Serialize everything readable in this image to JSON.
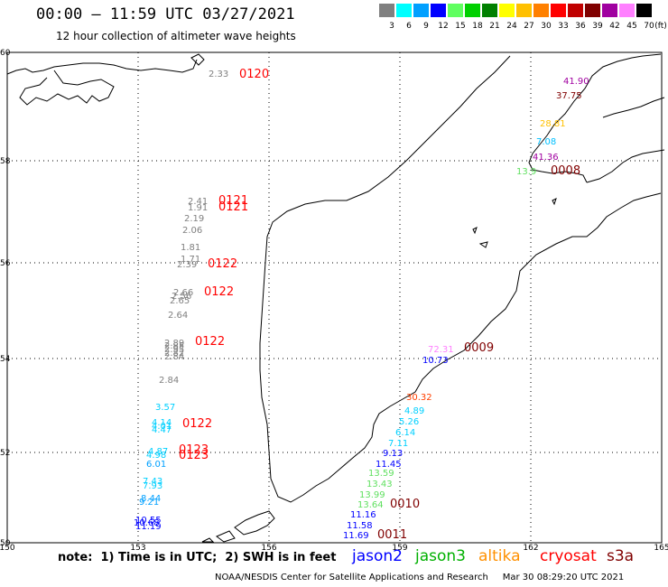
{
  "header": {
    "title": "00:00 – 11:59 UTC 03/27/2021",
    "subtitle": "12 hour collection of altimeter wave heights"
  },
  "legend": {
    "unit": "(ft)",
    "bins": [
      {
        "label": "3",
        "color": "#808080"
      },
      {
        "label": "6",
        "color": "#00ffff"
      },
      {
        "label": "9",
        "color": "#00a0ff"
      },
      {
        "label": "12",
        "color": "#0000ff"
      },
      {
        "label": "15",
        "color": "#60ff60"
      },
      {
        "label": "18",
        "color": "#00d000"
      },
      {
        "label": "21",
        "color": "#008000"
      },
      {
        "label": "24",
        "color": "#ffff00"
      },
      {
        "label": "27",
        "color": "#ffc000"
      },
      {
        "label": "30",
        "color": "#ff8000"
      },
      {
        "label": "33",
        "color": "#ff0000"
      },
      {
        "label": "36",
        "color": "#c00000"
      },
      {
        "label": "39",
        "color": "#800000"
      },
      {
        "label": "42",
        "color": "#a000a0"
      },
      {
        "label": "45",
        "color": "#ff80ff"
      },
      {
        "label": "70",
        "color": "#000000"
      }
    ]
  },
  "axes": {
    "lat_labels": [
      "60",
      "58",
      "56",
      "54",
      "52",
      "50"
    ],
    "lon_labels": [
      "150",
      "153",
      "156",
      "159",
      "162",
      "165"
    ]
  },
  "observations": [
    {
      "text": "2.33",
      "color": "#808080"
    },
    {
      "text": "0120",
      "color": "#ff0000",
      "tag": true
    },
    {
      "text": "2.41",
      "color": "#808080"
    },
    {
      "text": "1.91",
      "color": "#808080"
    },
    {
      "text": "0121",
      "color": "#ff0000",
      "tag": true
    },
    {
      "text": "0121",
      "color": "#ff0000",
      "tag": true
    },
    {
      "text": "2.19",
      "color": "#808080"
    },
    {
      "text": "2.06",
      "color": "#808080"
    },
    {
      "text": "1.81",
      "color": "#808080"
    },
    {
      "text": "1.71",
      "color": "#808080"
    },
    {
      "text": "2.39",
      "color": "#808080"
    },
    {
      "text": "0122",
      "color": "#ff0000",
      "tag": true
    },
    {
      "text": "2.66",
      "color": "#808080"
    },
    {
      "text": "2.56",
      "color": "#808080"
    },
    {
      "text": "2.65",
      "color": "#808080"
    },
    {
      "text": "0122",
      "color": "#ff0000",
      "tag": true
    },
    {
      "text": "2.64",
      "color": "#808080"
    },
    {
      "text": "2.89",
      "color": "#808080"
    },
    {
      "text": "2.85",
      "color": "#808080"
    },
    {
      "text": "2.95",
      "color": "#808080"
    },
    {
      "text": "2.82",
      "color": "#808080"
    },
    {
      "text": "2.84",
      "color": "#808080"
    },
    {
      "text": "0122",
      "color": "#ff0000",
      "tag": true
    },
    {
      "text": "2.84",
      "color": "#808080"
    },
    {
      "text": "3.57",
      "color": "#00d0ff"
    },
    {
      "text": "4.14",
      "color": "#00d0ff"
    },
    {
      "text": "4.01",
      "color": "#00d0ff"
    },
    {
      "text": "4.47",
      "color": "#00d0ff"
    },
    {
      "text": "0122",
      "color": "#ff0000",
      "tag": true
    },
    {
      "text": "4.87",
      "color": "#00d0ff"
    },
    {
      "text": "4.98",
      "color": "#00d0ff"
    },
    {
      "text": "0123",
      "color": "#ff0000",
      "tag": true
    },
    {
      "text": "0123",
      "color": "#ff0000",
      "tag": true
    },
    {
      "text": "6.01",
      "color": "#00a0ff"
    },
    {
      "text": "7.43",
      "color": "#00d0ff"
    },
    {
      "text": "7.93",
      "color": "#00d0ff"
    },
    {
      "text": "8.44",
      "color": "#00a0ff"
    },
    {
      "text": "9.21",
      "color": "#00a0ff"
    },
    {
      "text": "10.55",
      "color": "#0000ff"
    },
    {
      "text": "10.68",
      "color": "#0000ff"
    },
    {
      "text": "11.19",
      "color": "#0000ff"
    },
    {
      "text": "41.90",
      "color": "#a000a0"
    },
    {
      "text": "37.75",
      "color": "#800000"
    },
    {
      "text": "28.81",
      "color": "#ffc000"
    },
    {
      "text": "7.08",
      "color": "#00c0ff"
    },
    {
      "text": "41.36",
      "color": "#a000a0"
    },
    {
      "text": "13.9",
      "color": "#60e060"
    },
    {
      "text": "0008",
      "color": "#800000",
      "tag": true
    },
    {
      "text": "72.31",
      "color": "#ff80ff"
    },
    {
      "text": "0009",
      "color": "#800000",
      "tag": true
    },
    {
      "text": "10.73",
      "color": "#0000ff"
    },
    {
      "text": "30.32",
      "color": "#ff4000"
    },
    {
      "text": "4.89",
      "color": "#00d0ff"
    },
    {
      "text": "5.26",
      "color": "#00d0ff"
    },
    {
      "text": "6.14",
      "color": "#00d0ff"
    },
    {
      "text": "7.11",
      "color": "#00d0ff"
    },
    {
      "text": "9.13",
      "color": "#0000ff"
    },
    {
      "text": "11.45",
      "color": "#0000ff"
    },
    {
      "text": "13.59",
      "color": "#60e060"
    },
    {
      "text": "13.43",
      "color": "#60e060"
    },
    {
      "text": "13.99",
      "color": "#60e060"
    },
    {
      "text": "13.64",
      "color": "#60e060"
    },
    {
      "text": "0010",
      "color": "#800000",
      "tag": true
    },
    {
      "text": "11.16",
      "color": "#0000ff"
    },
    {
      "text": "11.58",
      "color": "#0000ff"
    },
    {
      "text": "11.69",
      "color": "#0000ff"
    },
    {
      "text": "0011",
      "color": "#800000",
      "tag": true
    }
  ],
  "footer": {
    "note": "note:  1) Time is in UTC;  2) SWH is in feet",
    "satellites": [
      {
        "name": "jason2",
        "color": "#0000ff"
      },
      {
        "name": "jason3",
        "color": "#00b000"
      },
      {
        "name": "altika",
        "color": "#ff9000"
      },
      {
        "name": "cryosat",
        "color": "#ff0000"
      },
      {
        "name": "s3a",
        "color": "#800000"
      }
    ],
    "credit": "NOAA/NESDIS Center for Satellite Applications and Research     Mar 30 08:29:20 UTC 2021"
  }
}
